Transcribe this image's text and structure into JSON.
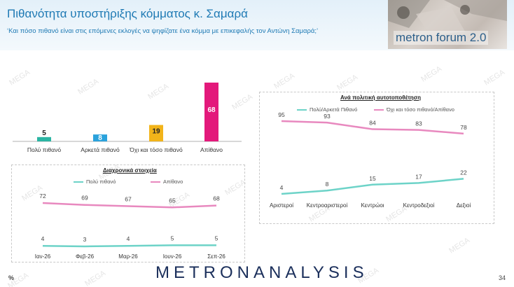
{
  "header": {
    "title": "Πιθανότητα υποστήριξης κόμματος κ. Σαμαρά",
    "question": "‘Και πόσο πιθανό είναι στις επόμενες εκλογές να ψηφίζατε ένα κόμμα με επικεφαλής τον Αντώνη Σαμαρά;’",
    "forum_logo": "metron forum 2.0"
  },
  "watermark_text": "MEGA",
  "footer": {
    "logo": "METRONANALYSIS",
    "page_number": "34",
    "percent_sign": "%"
  },
  "colors": {
    "teal": "#2bb5a3",
    "blue": "#2aa2dc",
    "yellow": "#f2b41a",
    "magenta": "#e3197b",
    "light_teal": "#6dd3c8",
    "light_pink": "#e889bf",
    "title_blue": "#1f7ab4"
  },
  "chart_data": [
    {
      "type": "bar",
      "categories": [
        "Πολύ πιθανό",
        "Αρκετά πιθανό",
        "Όχι και τόσο πιθανό",
        "Απίθανο"
      ],
      "values": [
        5,
        8,
        19,
        68
      ],
      "colors": [
        "#2bb5a3",
        "#2aa2dc",
        "#f2b41a",
        "#e3197b"
      ]
    },
    {
      "type": "line",
      "title": "Διαχρονικά στοιχεία",
      "categories": [
        "Ιαν-26",
        "Φεβ-26",
        "Μαρ-26",
        "Ιουν-26",
        "Σεπ-26"
      ],
      "series": [
        {
          "name": "Πολύ πιθανό",
          "values": [
            4,
            3,
            4,
            5,
            5
          ],
          "color": "#6dd3c8"
        },
        {
          "name": "Απίθανο",
          "values": [
            72,
            69,
            67,
            65,
            68
          ],
          "color": "#e889bf"
        }
      ],
      "legend": "top"
    },
    {
      "type": "line",
      "title": "Ανά πολιτική αυτοτοποθέτηση",
      "categories": [
        "Αριστεροί",
        "Κεντροαριστεροί",
        "Κεντρώοι",
        "Κεντροδεξιοί",
        "Δεξιοί"
      ],
      "series": [
        {
          "name": "Πολύ/Αρκετά Πιθανό",
          "values": [
            4,
            8,
            15,
            17,
            22
          ],
          "color": "#6dd3c8"
        },
        {
          "name": "Όχι και τόσο πιθανό/Απίθανο",
          "values": [
            95,
            93,
            84,
            83,
            78
          ],
          "color": "#e889bf"
        }
      ],
      "legend": "top"
    }
  ]
}
